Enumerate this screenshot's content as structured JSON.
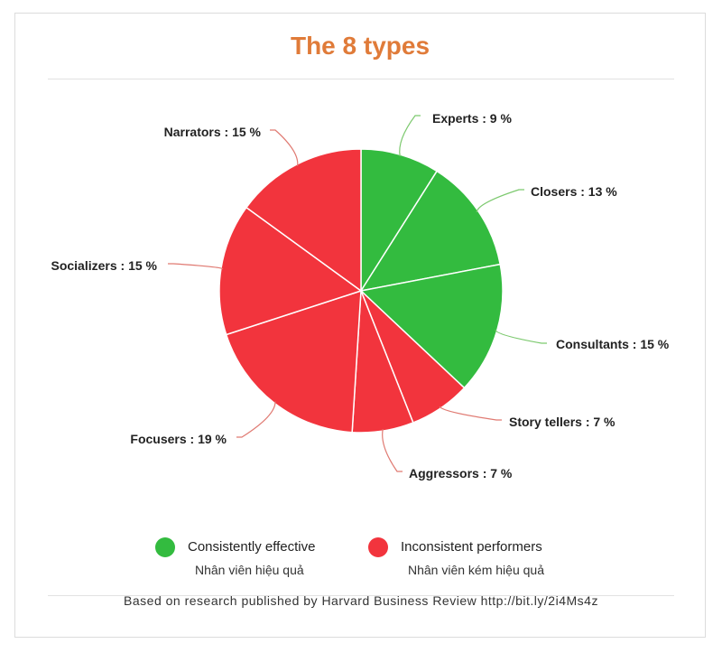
{
  "chart_data": {
    "type": "pie",
    "title": "The 8 types",
    "slices": [
      {
        "label": "Experts",
        "value": 9,
        "display": "Experts : 9 %",
        "group": "effective"
      },
      {
        "label": "Closers",
        "value": 13,
        "display": "Closers : 13 %",
        "group": "effective"
      },
      {
        "label": "Consultants",
        "value": 15,
        "display": "Consultants : 15 %",
        "group": "effective"
      },
      {
        "label": "Story tellers",
        "value": 7,
        "display": "Story tellers : 7 %",
        "group": "inconsistent"
      },
      {
        "label": "Aggressors",
        "value": 7,
        "display": "Aggressors : 7 %",
        "group": "inconsistent"
      },
      {
        "label": "Focusers",
        "value": 19,
        "display": "Focusers : 19 %",
        "group": "inconsistent"
      },
      {
        "label": "Socializers",
        "value": 15,
        "display": "Socializers : 15 %",
        "group": "inconsistent"
      },
      {
        "label": "Narrators",
        "value": 15,
        "display": "Narrators : 15 %",
        "group": "inconsistent"
      }
    ],
    "start_angle_deg": 0,
    "direction": "clockwise",
    "colors": {
      "effective": "#33bb3f",
      "inconsistent": "#f2343d",
      "effective_leader": "#7cc96e",
      "inconsistent_leader": "#e07a72"
    },
    "legend": [
      {
        "label": "Consistently effective",
        "sub": "Nhân viên hiệu quả",
        "group": "effective"
      },
      {
        "label": "Inconsistent performers",
        "sub": "Nhân viên kém hiệu quả",
        "group": "inconsistent"
      }
    ],
    "legend_placement": "bottom"
  },
  "footer": "Based on research published by Harvard Business Review http://bit.ly/2i4Ms4z"
}
